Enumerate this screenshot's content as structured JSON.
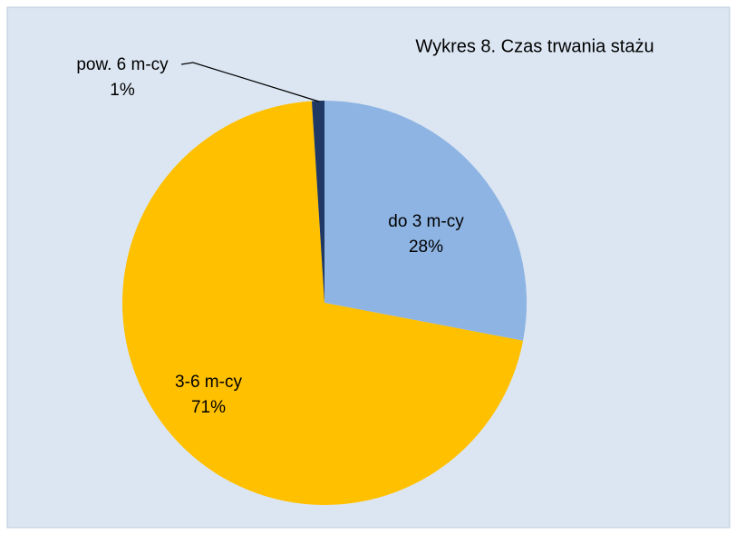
{
  "chart_data": {
    "type": "pie",
    "title": "Wykres 8. Czas trwania stażu",
    "categories": [
      "do 3 m-cy",
      "3-6 m-cy",
      "pow. 6 m-cy"
    ],
    "values": [
      28,
      71,
      1
    ],
    "value_labels": [
      "28%",
      "71%",
      "1%"
    ],
    "colors": [
      "#8eb4e3",
      "#ffc000",
      "#1f3864"
    ]
  }
}
